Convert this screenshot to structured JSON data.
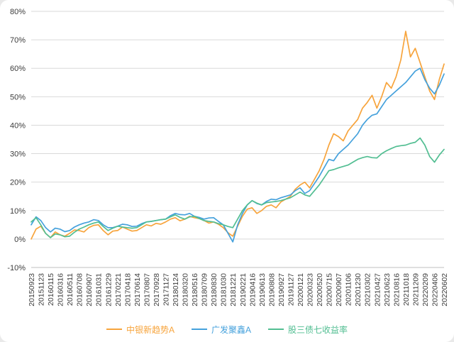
{
  "page": {
    "background": "#e9e9e9",
    "card_background": "#ffffff"
  },
  "chart_data": {
    "type": "line",
    "title": "",
    "grid": true,
    "grid_color": "#d9d9d9",
    "axis_line_color": "#bfbfbf",
    "legend_position": "bottom",
    "x_label_every": 2,
    "y_axis": {
      "min": -10,
      "max": 80,
      "step": 10,
      "unit": "%",
      "ticks": [
        "80%",
        "70%",
        "60%",
        "50%",
        "40%",
        "30%",
        "20%",
        "10%",
        "0%",
        "-10%"
      ]
    },
    "x_labels": [
      "20150923",
      "20151123",
      "20160115",
      "20160316",
      "20160511",
      "20160708",
      "20160907",
      "20161031",
      "20161229",
      "20170221",
      "20170418",
      "20170614",
      "20170807",
      "20170928",
      "20171127",
      "20180124",
      "20180320",
      "20180516",
      "20180709",
      "20180830",
      "20181030",
      "20181221",
      "20190221",
      "20190416",
      "20190613",
      "20190808",
      "20190927",
      "20191127",
      "20200121",
      "20200323",
      "20200520",
      "20200715",
      "20200907",
      "20201106",
      "20201230",
      "20210302",
      "20210427",
      "20210623",
      "20210816",
      "20211018",
      "20211209",
      "20220209",
      "20220406",
      "20220602"
    ],
    "series": [
      {
        "name": "中银新趋势A",
        "color": "#F7A43C",
        "values": [
          0,
          3.5,
          4.5,
          2,
          0.5,
          2.5,
          1.5,
          1,
          2,
          3.2,
          3,
          2.5,
          4,
          4.8,
          5,
          3,
          1.5,
          2.8,
          3,
          4.2,
          3.5,
          2.8,
          3,
          4,
          5,
          4.6,
          5.5,
          5.2,
          6,
          7,
          7.5,
          6.4,
          7,
          8,
          7.5,
          7.2,
          6.5,
          5.6,
          6,
          5.2,
          4,
          2.2,
          1,
          4.5,
          8,
          10.5,
          11,
          9,
          10,
          11.5,
          12,
          11,
          13,
          14,
          15,
          17.5,
          19,
          20,
          18,
          21,
          24,
          28,
          33,
          37,
          36,
          34.5,
          38,
          40,
          42,
          46,
          48,
          50.5,
          46,
          50,
          55,
          53,
          57,
          63,
          73,
          64,
          67,
          62,
          57,
          52,
          49,
          56,
          61.5
        ]
      },
      {
        "name": "广发聚鑫A",
        "color": "#45A1DC",
        "values": [
          5,
          7.8,
          6.5,
          4,
          2.5,
          3.8,
          3.5,
          2.6,
          3,
          4.2,
          5,
          5.6,
          6,
          6.8,
          6.5,
          5,
          4,
          4,
          4.5,
          5.2,
          5,
          4.4,
          4.5,
          5.4,
          6,
          6.2,
          6.5,
          6.8,
          7,
          8.2,
          9,
          8.6,
          8.5,
          9,
          8,
          7.6,
          7,
          7.4,
          7.5,
          6.2,
          5,
          2,
          -1,
          5,
          9,
          12,
          13.5,
          12.5,
          12,
          13.2,
          14,
          13.8,
          14.5,
          15,
          15.5,
          17,
          18,
          16,
          17,
          19.5,
          22,
          25,
          28,
          27.5,
          30,
          31.5,
          33,
          35,
          37,
          40,
          42,
          43.5,
          44,
          46.5,
          49,
          50.5,
          52,
          53.5,
          55,
          57,
          59,
          60,
          56,
          53,
          51,
          54,
          58
        ]
      },
      {
        "name": "股三债七收益率",
        "color": "#52BE92",
        "values": [
          6,
          7.5,
          5,
          2,
          0.5,
          1.8,
          1.5,
          0.8,
          1,
          2.4,
          3.5,
          4.2,
          5,
          5.6,
          6,
          4.4,
          3,
          3.8,
          4.5,
          4.2,
          4,
          3.8,
          4,
          5,
          6,
          6.2,
          6.5,
          6.8,
          7,
          7.8,
          8.5,
          7.6,
          7,
          7.8,
          8,
          7.2,
          6.5,
          6.2,
          6,
          5.4,
          5,
          4.4,
          4,
          7,
          10,
          12,
          13.5,
          12.6,
          12,
          12.8,
          13,
          13.2,
          13.5,
          14,
          14.5,
          15.5,
          16.5,
          15.5,
          15,
          17,
          19,
          21.5,
          24,
          24.4,
          25,
          25.5,
          26,
          27,
          28,
          28.6,
          29,
          28.6,
          28.5,
          30,
          31,
          31.8,
          32.5,
          32.8,
          33,
          33.6,
          34,
          35.5,
          33,
          29,
          27,
          29.5,
          31.5
        ]
      }
    ]
  }
}
